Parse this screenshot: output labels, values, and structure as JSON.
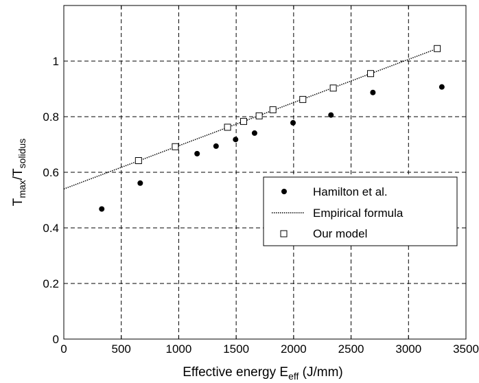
{
  "chart_data": {
    "type": "scatter",
    "xlabel": {
      "main": "Effective energy E",
      "sub": "eff",
      "suffix": " (J/mm)"
    },
    "ylabel": {
      "p1": "T",
      "s1": "max",
      "p2": "/T",
      "s2": "solidus"
    },
    "xlim": [
      0,
      3500
    ],
    "ylim": [
      0,
      1.2
    ],
    "x_ticks": [
      0,
      500,
      1000,
      1500,
      2000,
      2500,
      3000,
      3500
    ],
    "y_ticks": [
      0,
      0.2,
      0.4,
      0.6,
      0.8,
      1
    ],
    "x_tick_labels": [
      "0",
      "500",
      "1000",
      "1500",
      "2000",
      "2500",
      "3000",
      "3500"
    ],
    "y_tick_labels": [
      "0",
      "0.2",
      "0.4",
      "0.6",
      "0.8",
      "1"
    ],
    "grid": true,
    "legend_position": "center-right",
    "series": [
      {
        "name": "Hamilton et al.",
        "style": "filled-circle",
        "color": "#000000",
        "points": [
          {
            "x": 330,
            "y": 0.468
          },
          {
            "x": 665,
            "y": 0.561
          },
          {
            "x": 1160,
            "y": 0.667
          },
          {
            "x": 1325,
            "y": 0.694
          },
          {
            "x": 1495,
            "y": 0.718
          },
          {
            "x": 1660,
            "y": 0.741
          },
          {
            "x": 1995,
            "y": 0.778
          },
          {
            "x": 2325,
            "y": 0.806
          },
          {
            "x": 2690,
            "y": 0.887
          },
          {
            "x": 3290,
            "y": 0.907
          }
        ]
      },
      {
        "name": "Empirical formula",
        "style": "dotted-line",
        "color": "#000000",
        "points": [
          {
            "x": 0,
            "y": 0.54
          },
          {
            "x": 3250,
            "y": 1.045
          }
        ]
      },
      {
        "name": "Our model",
        "style": "open-square",
        "color": "#000000",
        "points": [
          {
            "x": 650,
            "y": 0.642
          },
          {
            "x": 970,
            "y": 0.692
          },
          {
            "x": 1425,
            "y": 0.762
          },
          {
            "x": 1565,
            "y": 0.783
          },
          {
            "x": 1700,
            "y": 0.803
          },
          {
            "x": 1820,
            "y": 0.825
          },
          {
            "x": 2080,
            "y": 0.862
          },
          {
            "x": 2345,
            "y": 0.903
          },
          {
            "x": 2670,
            "y": 0.955
          },
          {
            "x": 3250,
            "y": 1.045
          }
        ]
      }
    ]
  }
}
